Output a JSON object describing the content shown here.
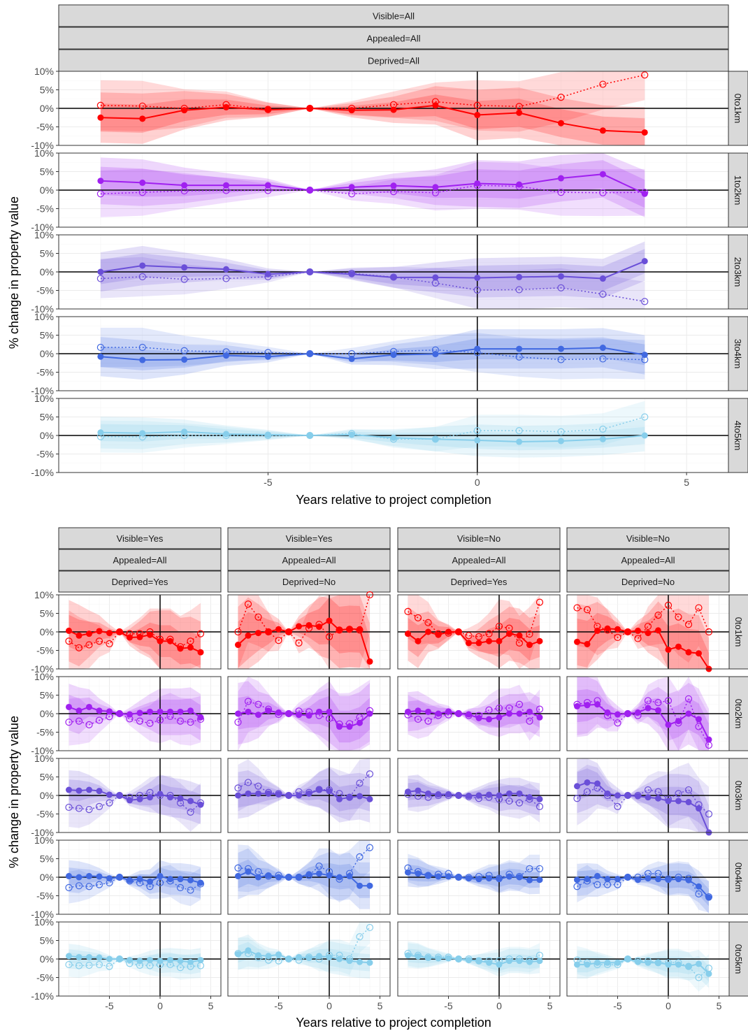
{
  "figure": {
    "ylabel": "% change in property value",
    "xlabel": "Years relative to project completion",
    "y_tick_labels": [
      "-10%",
      "-5%",
      "0%",
      "5%",
      "10%"
    ],
    "x_tick_labels": [
      "-5",
      "0",
      "5"
    ]
  },
  "colors": {
    "band0": "#ff0000",
    "band1": "#a020f0",
    "band2": "#6a4fd8",
    "band3": "#4169e1",
    "band4": "#87ceeb"
  },
  "top_strips": [
    "Visible=All",
    "Appealed=All",
    "Deprived=All"
  ],
  "top_rows": [
    "0to1km",
    "1to2km",
    "2to3km",
    "3to4km",
    "4to5km"
  ],
  "bottom_columns": [
    {
      "strips": [
        "Visible=Yes",
        "Appealed=All",
        "Deprived=Yes"
      ]
    },
    {
      "strips": [
        "Visible=Yes",
        "Appealed=All",
        "Deprived=No"
      ]
    },
    {
      "strips": [
        "Visible=No",
        "Appealed=All",
        "Deprived=Yes"
      ]
    },
    {
      "strips": [
        "Visible=No",
        "Appealed=All",
        "Deprived=No"
      ]
    }
  ],
  "bottom_rows": [
    "0to1km",
    "0to2km",
    "0to3km",
    "0to4km",
    "0to5km"
  ],
  "chart_data": [
    {
      "type": "line",
      "panel": "top",
      "xlabel": "Years relative to project completion",
      "ylabel": "% change in property value",
      "xlim": [
        -10,
        6
      ],
      "ylim": [
        -10,
        10
      ],
      "x": [
        -9,
        -8,
        -7,
        -6,
        -5,
        -4,
        -3,
        -2,
        -1,
        0,
        1,
        2,
        3,
        4
      ],
      "facets": [
        {
          "row": "0to1km",
          "solid": [
            -2.5,
            -2.8,
            -0.5,
            0.3,
            -0.4,
            0,
            -0.5,
            -0.4,
            0.8,
            -1.8,
            -1.2,
            -4.0,
            -6.0,
            -6.5
          ],
          "dotted": [
            0.8,
            0.6,
            0.0,
            1.0,
            -0.3,
            0,
            0.0,
            1.0,
            1.8,
            0.8,
            0.5,
            3.0,
            6.5,
            9.0
          ],
          "band_outer": 6.5,
          "band_inner": 3.5
        },
        {
          "row": "1to2km",
          "solid": [
            2.5,
            2.0,
            1.3,
            1.3,
            1.3,
            0,
            0.8,
            1.2,
            0.8,
            1.8,
            1.5,
            3.2,
            4.3,
            -1.0
          ],
          "dotted": [
            -1.0,
            -0.6,
            -0.2,
            -0.1,
            -0.1,
            0,
            -1.0,
            -0.4,
            -0.7,
            1.3,
            1.0,
            -0.6,
            -0.7,
            -0.6
          ],
          "band_outer": 6.0,
          "band_inner": 3.5
        },
        {
          "row": "2to3km",
          "solid": [
            0.0,
            1.7,
            1.2,
            0.7,
            -0.6,
            0,
            -0.6,
            -1.5,
            -1.5,
            -1.6,
            -1.4,
            -1.2,
            -1.8,
            2.9
          ],
          "dotted": [
            -1.8,
            -1.3,
            -2.0,
            -1.8,
            -1.3,
            0,
            -0.4,
            -1.4,
            -3.0,
            -4.9,
            -4.8,
            -4.3,
            -6.0,
            -8.0
          ],
          "band_outer": 5.0,
          "band_inner": 3.0
        },
        {
          "row": "3to4km",
          "solid": [
            -0.8,
            -1.7,
            -1.6,
            -0.5,
            -0.8,
            0,
            -1.4,
            -0.3,
            -0.1,
            1.3,
            1.3,
            1.3,
            1.6,
            -0.3
          ],
          "dotted": [
            1.7,
            1.7,
            0.8,
            0.5,
            0.3,
            0,
            0.0,
            0.6,
            1.0,
            0.3,
            -0.9,
            -1.6,
            -1.4,
            -1.6
          ],
          "band_outer": 5.0,
          "band_inner": 2.5
        },
        {
          "row": "4to5km",
          "solid": [
            0.8,
            0.6,
            1.0,
            0.4,
            0.2,
            0,
            0.2,
            -0.6,
            -1.0,
            -1.3,
            -1.7,
            -1.5,
            -1.0,
            0.0
          ],
          "dotted": [
            -0.3,
            -0.4,
            0.0,
            0.0,
            0.0,
            0,
            0.5,
            -1.0,
            -1.0,
            1.3,
            1.3,
            1.0,
            1.7,
            5.0
          ],
          "band_outer": 4.0,
          "band_inner": 2.0
        }
      ]
    },
    {
      "type": "line",
      "panel": "bottom",
      "xlabel": "Years relative to project completion",
      "ylabel": "% change in property value",
      "xlim": [
        -10,
        6
      ],
      "ylim": [
        -10,
        10
      ],
      "x": [
        -9,
        -8,
        -7,
        -6,
        -5,
        -4,
        -3,
        -2,
        -1,
        0,
        1,
        2,
        3,
        4
      ],
      "facets": [
        {
          "col": 0,
          "row": "0to1km",
          "solid": [
            0.3,
            -1.0,
            -0.5,
            0.2,
            -0.3,
            0,
            -1.5,
            -1.4,
            -0.8,
            -2.5,
            -2.5,
            -4.5,
            -4.2,
            -5.5
          ],
          "dotted": [
            -2.5,
            -4.3,
            -3.5,
            -2.5,
            -3.2,
            0,
            -0.5,
            -0.5,
            0.0,
            -2.0,
            -2.0,
            -4.0,
            -2.5,
            -0.5
          ],
          "band_outer": 8,
          "band_inner": 4
        },
        {
          "col": 1,
          "row": "0to1km",
          "solid": [
            -3.5,
            -1.0,
            -0.3,
            0.0,
            0.7,
            0,
            1.5,
            1.8,
            1.4,
            3.0,
            0.5,
            0.8,
            0.7,
            -8.0
          ],
          "dotted": [
            0.0,
            7.5,
            4.0,
            0.0,
            -2.3,
            0,
            -3.0,
            1.0,
            2.0,
            -1.3,
            0.5,
            0.7,
            0.5,
            10.0
          ],
          "band_outer": 10,
          "band_inner": 6
        },
        {
          "col": 2,
          "row": "0to1km",
          "solid": [
            -0.5,
            -2.5,
            0.0,
            -0.8,
            0.0,
            0,
            -3.0,
            -3.0,
            -2.5,
            -2.5,
            -0.5,
            -1.0,
            -3.5,
            -2.5
          ],
          "dotted": [
            5.5,
            3.8,
            2.5,
            -0.5,
            -0.3,
            0,
            -1.0,
            -1.3,
            -0.5,
            1.5,
            1.0,
            -3.0,
            -0.6,
            8.0
          ],
          "band_outer": 7,
          "band_inner": 4
        },
        {
          "col": 3,
          "row": "0to1km",
          "solid": [
            -2.7,
            -3.3,
            0.3,
            0.9,
            0.7,
            0,
            0.3,
            -0.3,
            0.4,
            -4.8,
            -4.0,
            -5.5,
            -5.8,
            -12.0
          ],
          "dotted": [
            6.5,
            6.0,
            1.5,
            0.5,
            -1.5,
            0,
            -1.8,
            1.5,
            4.5,
            7.2,
            4.0,
            2.0,
            6.5,
            0.0
          ],
          "band_outer": 10,
          "band_inner": 6
        },
        {
          "col": 0,
          "row": "0to2km",
          "solid": [
            1.8,
            0.8,
            1.8,
            0.8,
            0.6,
            0,
            -0.2,
            0.2,
            0.5,
            0.5,
            0.5,
            0.5,
            0.8,
            -1.0
          ],
          "dotted": [
            -2.3,
            -2.0,
            -3.0,
            -1.8,
            -0.8,
            0,
            -1.4,
            -2.0,
            -2.6,
            -1.7,
            -0.7,
            -2.0,
            -2.3,
            -1.5
          ],
          "band_outer": 6,
          "band_inner": 3
        },
        {
          "col": 1,
          "row": "0to2km",
          "solid": [
            0.0,
            0.5,
            -0.3,
            0.8,
            0.3,
            0,
            -0.3,
            -0.5,
            0.5,
            0.5,
            -3.5,
            -3.5,
            -2.5,
            0.0
          ],
          "dotted": [
            -2.3,
            3.3,
            2.5,
            1.2,
            -0.2,
            0,
            0.7,
            0.5,
            -0.5,
            -1.3,
            -2.8,
            -2.7,
            -1.0,
            0.8
          ],
          "band_outer": 8,
          "band_inner": 4
        },
        {
          "col": 2,
          "row": "0to2km",
          "solid": [
            0.5,
            0.8,
            0.5,
            0.0,
            0.6,
            0,
            -0.2,
            -1.2,
            -1.5,
            -1.0,
            0.0,
            0.0,
            0.5,
            -1.0
          ],
          "dotted": [
            -0.3,
            -1.5,
            -2.0,
            -0.5,
            -0.3,
            0,
            -0.5,
            -0.5,
            1.0,
            1.5,
            1.5,
            2.5,
            -2.0,
            1.2
          ],
          "band_outer": 5,
          "band_inner": 2.5
        },
        {
          "col": 3,
          "row": "0to2km",
          "solid": [
            2.0,
            2.3,
            2.5,
            0.3,
            -0.2,
            0,
            0.3,
            1.5,
            0.9,
            -3.0,
            -2.0,
            0.0,
            -1.5,
            -7.0
          ],
          "dotted": [
            2.5,
            3.0,
            3.5,
            -0.5,
            -2.5,
            0,
            -0.5,
            3.5,
            3.0,
            3.5,
            -2.5,
            4.0,
            -3.5,
            -8.5
          ],
          "band_outer": 8,
          "band_inner": 4
        },
        {
          "col": 0,
          "row": "0to3km",
          "solid": [
            1.5,
            1.3,
            1.5,
            1.2,
            0.2,
            0,
            -1.3,
            -1.0,
            -0.5,
            0.4,
            -0.5,
            -0.8,
            -1.5,
            -2.5
          ],
          "dotted": [
            -3.2,
            -3.5,
            -3.8,
            -3.0,
            -2.0,
            0,
            -0.5,
            0.0,
            0.8,
            0.0,
            0.0,
            -2.0,
            -4.5,
            -2.0
          ],
          "band_outer": 5,
          "band_inner": 2.5
        },
        {
          "col": 1,
          "row": "0to3km",
          "solid": [
            0.0,
            0.5,
            0.5,
            0.5,
            0.3,
            0,
            0.0,
            0.5,
            1.5,
            1.2,
            -1.0,
            -0.5,
            -0.2,
            -1.0
          ],
          "dotted": [
            2.0,
            3.5,
            2.5,
            0.8,
            0.5,
            0,
            1.0,
            0.8,
            1.6,
            1.5,
            0.5,
            -0.5,
            3.3,
            5.8
          ],
          "band_outer": 6,
          "band_inner": 3
        },
        {
          "col": 2,
          "row": "0to3km",
          "solid": [
            1.0,
            1.3,
            0.5,
            0.3,
            0.3,
            0,
            -0.1,
            0.0,
            0.2,
            0.0,
            0.5,
            0.5,
            -0.5,
            -1.0
          ],
          "dotted": [
            0.3,
            -0.2,
            -0.5,
            0.0,
            0.0,
            0,
            -0.3,
            -0.8,
            -0.5,
            -1.0,
            -1.5,
            -2.0,
            -1.0,
            -3.0
          ],
          "band_outer": 4,
          "band_inner": 2
        },
        {
          "col": 3,
          "row": "0to3km",
          "solid": [
            2.5,
            3.5,
            3.2,
            0.5,
            0.0,
            0,
            -0.2,
            -0.5,
            -0.8,
            -1.5,
            -1.5,
            -1.8,
            -3.5,
            -10.0
          ],
          "dotted": [
            -0.8,
            1.0,
            2.0,
            0.0,
            -3.0,
            0,
            0.0,
            1.5,
            1.0,
            -1.0,
            0.5,
            1.5,
            -2.5,
            -5.0
          ],
          "band_outer": 7,
          "band_inner": 3.5
        },
        {
          "col": 0,
          "row": "0to4km",
          "solid": [
            0.3,
            0.0,
            0.3,
            0.2,
            -0.3,
            0,
            -0.8,
            -0.5,
            -1.2,
            0.3,
            -0.5,
            -0.5,
            -0.8,
            -1.5
          ],
          "dotted": [
            -2.8,
            -2.3,
            -2.5,
            -2.0,
            -1.5,
            0,
            -1.0,
            -1.5,
            -2.5,
            -1.5,
            -1.0,
            -2.8,
            -3.5,
            -1.8
          ],
          "band_outer": 4,
          "band_inner": 2
        },
        {
          "col": 1,
          "row": "0to4km",
          "solid": [
            0.3,
            1.5,
            0.0,
            0.5,
            0.0,
            0,
            0.0,
            0.8,
            1.0,
            0.5,
            0.0,
            0.3,
            -2.3,
            -2.3
          ],
          "dotted": [
            2.5,
            2.3,
            1.5,
            0.3,
            0.5,
            0,
            0.0,
            0.5,
            3.0,
            1.5,
            -0.5,
            1.0,
            5.5,
            8.0
          ],
          "band_outer": 6,
          "band_inner": 3
        },
        {
          "col": 2,
          "row": "0to4km",
          "solid": [
            1.3,
            1.0,
            0.5,
            0.2,
            0.2,
            0,
            -0.3,
            -0.5,
            -0.3,
            -0.5,
            0.2,
            0.0,
            -0.8,
            -0.7
          ],
          "dotted": [
            2.5,
            1.5,
            0.5,
            0.8,
            1.0,
            0,
            -0.1,
            0.2,
            0.5,
            -0.3,
            0.8,
            0.2,
            2.3,
            2.3
          ],
          "band_outer": 3.5,
          "band_inner": 1.8
        },
        {
          "col": 3,
          "row": "0to4km",
          "solid": [
            -0.7,
            -0.5,
            0.3,
            -0.5,
            -0.5,
            0,
            -0.7,
            -0.3,
            -0.5,
            -0.7,
            -0.5,
            -0.8,
            -2.5,
            -5.5
          ],
          "dotted": [
            -2.5,
            -1.0,
            -2.0,
            -2.0,
            -2.0,
            0,
            0.0,
            1.0,
            1.0,
            -0.5,
            0.0,
            -0.3,
            -4.5,
            -5.3
          ],
          "band_outer": 4,
          "band_inner": 2
        },
        {
          "col": 0,
          "row": "0to5km",
          "solid": [
            0.8,
            0.5,
            0.5,
            0.4,
            0.0,
            0,
            -0.3,
            -0.5,
            -0.3,
            -0.5,
            -0.3,
            -0.5,
            -0.8,
            -0.3
          ],
          "dotted": [
            -1.5,
            -1.8,
            -1.7,
            -1.5,
            -2.0,
            0,
            -1.2,
            -1.7,
            -1.8,
            -1.5,
            -1.5,
            -2.3,
            -2.0,
            -1.8
          ],
          "band_outer": 3,
          "band_inner": 1.5
        },
        {
          "col": 1,
          "row": "0to5km",
          "solid": [
            1.3,
            2.3,
            1.0,
            0.8,
            1.2,
            0,
            0.5,
            0.3,
            0.8,
            0.5,
            0.0,
            -0.5,
            -0.8,
            -1.0
          ],
          "dotted": [
            1.5,
            1.5,
            0.5,
            -0.3,
            -0.5,
            0,
            -0.3,
            0.5,
            0.0,
            1.0,
            1.0,
            0.0,
            6.0,
            8.5
          ],
          "band_outer": 4,
          "band_inner": 2
        },
        {
          "col": 2,
          "row": "0to5km",
          "solid": [
            1.0,
            0.7,
            0.3,
            0.2,
            0.2,
            0,
            -0.3,
            -0.5,
            -1.0,
            -1.5,
            -0.5,
            -0.5,
            -0.8,
            -0.5
          ],
          "dotted": [
            1.5,
            1.0,
            0.5,
            0.5,
            0.5,
            0,
            0.0,
            -0.5,
            -0.5,
            -0.5,
            0.0,
            0.0,
            -0.3,
            1.0
          ],
          "band_outer": 3,
          "band_inner": 1.5
        },
        {
          "col": 3,
          "row": "0to5km",
          "solid": [
            -1.5,
            -1.5,
            -1.0,
            -1.0,
            -1.0,
            0,
            -0.8,
            -1.0,
            -1.0,
            -1.5,
            -1.5,
            -2.0,
            -1.3,
            -4.0
          ],
          "dotted": [
            -0.3,
            -1.0,
            -1.5,
            -1.5,
            -1.5,
            0,
            -0.5,
            -0.5,
            -1.0,
            -1.0,
            -1.0,
            -2.0,
            -5.0,
            -2.5
          ],
          "band_outer": 3.5,
          "band_inner": 1.8
        }
      ]
    }
  ]
}
